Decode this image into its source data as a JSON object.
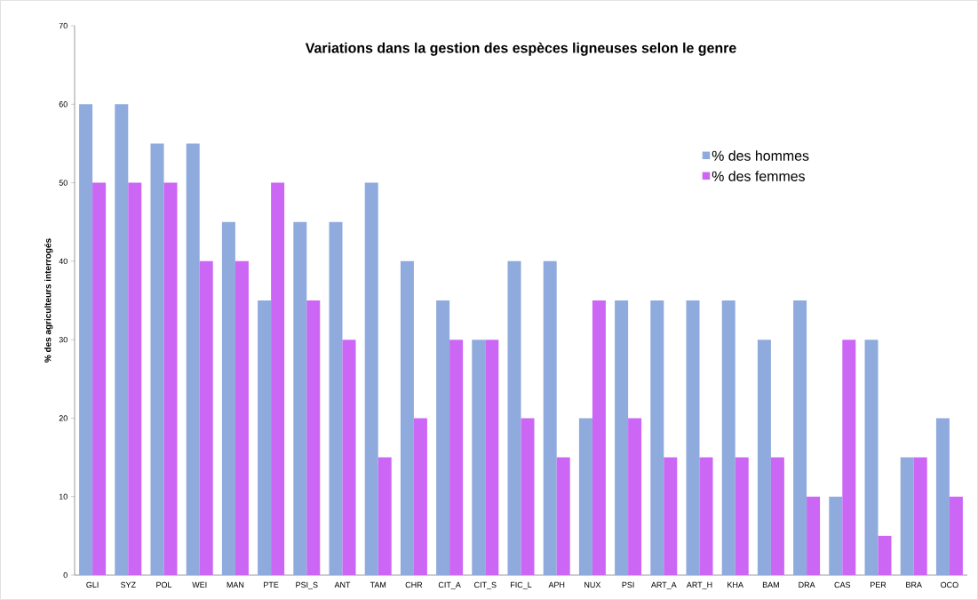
{
  "chart_data": {
    "type": "bar",
    "title": "Variations dans la gestion des espèces ligneuses selon le genre",
    "ylabel": "% des agriculteurs interrogés",
    "categories": [
      "GLI",
      "SYZ",
      "POL",
      "WEI",
      "MAN",
      "PTE",
      "PSI_S",
      "ANT",
      "TAM",
      "CHR",
      "CIT_A",
      "CIT_S",
      "FIC_L",
      "APH",
      "NUX",
      "PSI",
      "ART_A",
      "ART_H",
      "KHA",
      "BAM",
      "DRA",
      "CAS",
      "PER",
      "BRA",
      "OCO"
    ],
    "series": [
      {
        "name": "% des hommes",
        "color": "#8faadc",
        "values": [
          60,
          60,
          55,
          55,
          45,
          35,
          45,
          45,
          50,
          40,
          35,
          30,
          40,
          40,
          20,
          35,
          35,
          35,
          35,
          30,
          35,
          10,
          30,
          15,
          20
        ]
      },
      {
        "name": "% des femmes",
        "color": "#cc66f5",
        "values": [
          50,
          50,
          50,
          40,
          40,
          50,
          35,
          30,
          15,
          20,
          30,
          30,
          20,
          15,
          35,
          20,
          15,
          15,
          15,
          15,
          10,
          30,
          5,
          15,
          10
        ]
      }
    ],
    "ylim": [
      0,
      70
    ],
    "yticks": [
      0,
      10,
      20,
      30,
      40,
      50,
      60,
      70
    ],
    "legend": "right"
  }
}
